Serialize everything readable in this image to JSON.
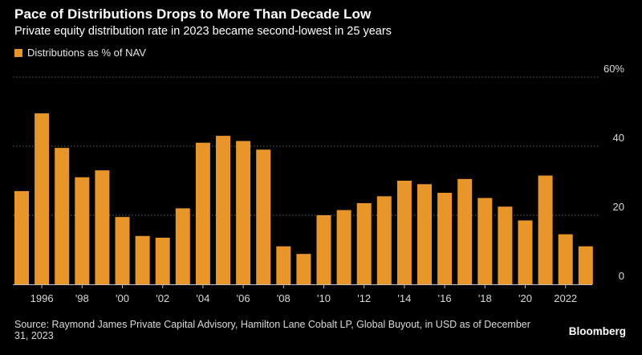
{
  "header": {
    "title": "Pace of Distributions Drops to More Than Decade Low",
    "subtitle": "Private equity distribution rate in 2023 became second-lowest in 25 years"
  },
  "footer": {
    "source": "Source: Raymond James Private Capital Advisory, Hamilton Lane Cobalt LP, Global Buyout, in USD as of December 31, 2023",
    "brand": "Bloomberg"
  },
  "colors": {
    "bar": "#e8952a",
    "grid": "#666666",
    "axis": "#bdbdbd"
  },
  "chart_data": {
    "type": "bar",
    "title": "Pace of Distributions Drops to More Than Decade Low",
    "subtitle": "Private equity distribution rate in 2023 became second-lowest in 25 years",
    "legend": [
      "Distributions as % of NAV"
    ],
    "legend_position": "top-left",
    "xlabel": "",
    "ylabel": "",
    "ylim": [
      0,
      60
    ],
    "yticks": [
      0,
      20,
      40,
      60
    ],
    "ytick_labels": [
      "0",
      "20",
      "40",
      "60%"
    ],
    "grid": true,
    "categories": [
      "1995",
      "1996",
      "1997",
      "1998",
      "1999",
      "2000",
      "2001",
      "2002",
      "2003",
      "2004",
      "2005",
      "2006",
      "2007",
      "2008",
      "2009",
      "2010",
      "2011",
      "2012",
      "2013",
      "2014",
      "2015",
      "2016",
      "2017",
      "2018",
      "2019",
      "2020",
      "2021",
      "2022",
      "2023"
    ],
    "xtick_labels": [
      {
        "index": 1,
        "label": "1996"
      },
      {
        "index": 3,
        "label": "'98"
      },
      {
        "index": 5,
        "label": "'00"
      },
      {
        "index": 7,
        "label": "'02"
      },
      {
        "index": 9,
        "label": "'04"
      },
      {
        "index": 11,
        "label": "'06"
      },
      {
        "index": 13,
        "label": "'08"
      },
      {
        "index": 15,
        "label": "'10"
      },
      {
        "index": 17,
        "label": "'12"
      },
      {
        "index": 19,
        "label": "'14"
      },
      {
        "index": 21,
        "label": "'16"
      },
      {
        "index": 23,
        "label": "'18"
      },
      {
        "index": 25,
        "label": "'20"
      },
      {
        "index": 27,
        "label": "2022"
      }
    ],
    "series": [
      {
        "name": "Distributions as % of NAV",
        "values": [
          27,
          49.5,
          39.5,
          31,
          33,
          19.5,
          14,
          13.5,
          22,
          41,
          43,
          41.5,
          39,
          11,
          8.8,
          20,
          21.5,
          23.5,
          25.5,
          30,
          29,
          26.5,
          30.5,
          25,
          22.5,
          18.5,
          31.5,
          14.5,
          11
        ]
      }
    ]
  }
}
